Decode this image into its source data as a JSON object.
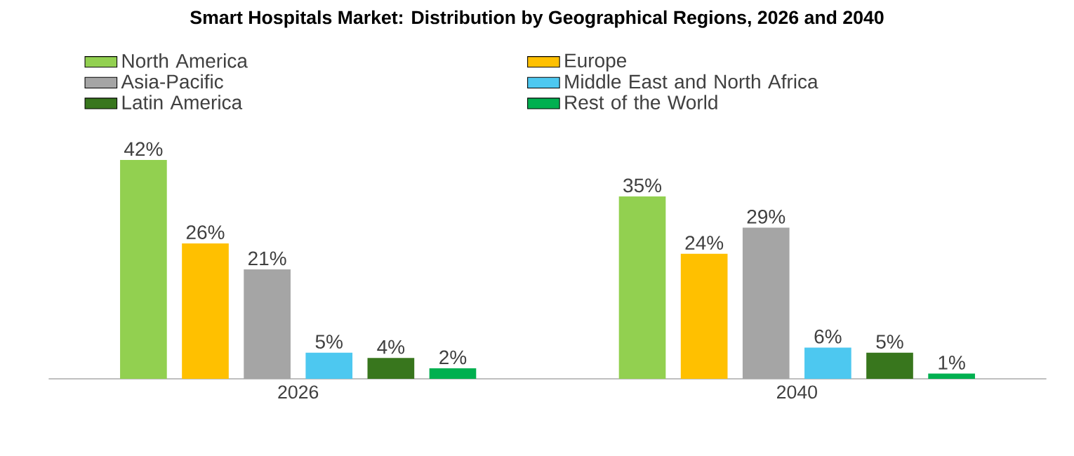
{
  "chart_data": {
    "type": "bar",
    "title": "Smart Hospitals Market: Distribution by Geographical Regions, 2026 and 2040",
    "categories": [
      "2026",
      "2040"
    ],
    "series": [
      {
        "name": "North America",
        "color": "#92d050",
        "values": [
          42,
          35
        ],
        "value_labels": [
          "42%",
          "35%"
        ]
      },
      {
        "name": "Europe",
        "color": "#ffc000",
        "values": [
          26,
          24
        ],
        "value_labels": [
          "26%",
          "24%"
        ]
      },
      {
        "name": "Asia-Pacific",
        "color": "#a5a5a5",
        "values": [
          21,
          29
        ],
        "value_labels": [
          "21%",
          "29%"
        ]
      },
      {
        "name": "Middle East and North Africa",
        "color": "#4dc8f0",
        "values": [
          5,
          6
        ],
        "value_labels": [
          "5%",
          "6%"
        ]
      },
      {
        "name": "Latin America",
        "color": "#38761d",
        "values": [
          4,
          5
        ],
        "value_labels": [
          "4%",
          "5%"
        ]
      },
      {
        "name": "Rest of the World",
        "color": "#00b050",
        "values": [
          2,
          1
        ],
        "value_labels": [
          "2%",
          "1%"
        ]
      }
    ],
    "legend": "top"
  }
}
